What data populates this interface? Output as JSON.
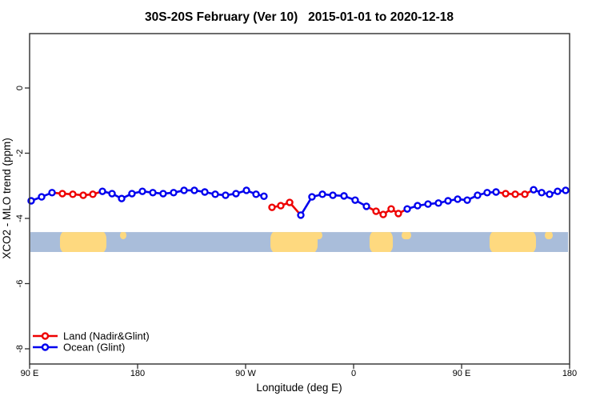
{
  "chart_data": {
    "type": "line",
    "title": "30S-20S February (Ver 10)   2015-01-01 to 2020-12-18",
    "xlabel": "Longitude (deg E)",
    "ylabel": "XCO2 - MLO trend (ppm)",
    "x_tick_labels": [
      "90 E",
      "180",
      "90 W",
      "0",
      "90 E",
      "180"
    ],
    "x_tick_lon_offsets": [
      0,
      90,
      180,
      270,
      360,
      450
    ],
    "x_axis_note": "longitude axis wraps: 90E eastward through 180, 90W, 0, 90E to 180 (450 deg span)",
    "y_ticks": [
      "0",
      "-2",
      "-4",
      "-6",
      "-8"
    ],
    "y_tick_values": [
      0,
      -2,
      -4,
      -6,
      -8
    ],
    "ylim": [
      -8.47,
      1.67
    ],
    "grid": false,
    "legend_position": "bottom-left inside plot",
    "legend": [
      {
        "label": "Land (Nadir&Glint)",
        "color": "#ee0000",
        "series": "L"
      },
      {
        "label": "Ocean (Glint)",
        "color": "#0000ee",
        "series": "O"
      }
    ],
    "colors": {
      "land_series": "#ee0000",
      "ocean_series": "#0000ee",
      "map_ocean": "#a9bdda",
      "map_land": "#fed97f",
      "axis": "#2e2e2e",
      "marker_fill": "#ffffff"
    },
    "map_band": {
      "description": "surface type strip for 30S-20S latitude band",
      "ppm_top": -4.42,
      "ppm_bottom": -5.03,
      "land_patches": [
        {
          "lon_from": 25.3,
          "lon_to": 64.0,
          "full": true
        },
        {
          "lon_from": 75.3,
          "lon_to": 80.7,
          "full": false
        },
        {
          "lon_from": 200.7,
          "lon_to": 240.0,
          "full": true
        },
        {
          "lon_from": 236.0,
          "lon_to": 244.0,
          "full": false
        },
        {
          "lon_from": 283.3,
          "lon_to": 302.7,
          "full": true
        },
        {
          "lon_from": 310.0,
          "lon_to": 318.0,
          "full": false
        },
        {
          "lon_from": 383.3,
          "lon_to": 422.0,
          "full": true
        },
        {
          "lon_from": 429.3,
          "lon_to": 436.0,
          "full": false
        }
      ]
    },
    "points": [
      {
        "lon": 1.3,
        "v": -3.46,
        "c": "O"
      },
      {
        "lon": 10.0,
        "v": -3.34,
        "c": "O"
      },
      {
        "lon": 18.7,
        "v": -3.21,
        "c": "O"
      },
      {
        "lon": 27.3,
        "v": -3.24,
        "c": "L"
      },
      {
        "lon": 36.0,
        "v": -3.26,
        "c": "L"
      },
      {
        "lon": 44.7,
        "v": -3.29,
        "c": "L"
      },
      {
        "lon": 52.7,
        "v": -3.26,
        "c": "L"
      },
      {
        "lon": 60.7,
        "v": -3.17,
        "c": "O"
      },
      {
        "lon": 68.7,
        "v": -3.24,
        "c": "O"
      },
      {
        "lon": 76.7,
        "v": -3.39,
        "c": "O"
      },
      {
        "lon": 85.3,
        "v": -3.24,
        "c": "O"
      },
      {
        "lon": 94.0,
        "v": -3.17,
        "c": "O"
      },
      {
        "lon": 102.7,
        "v": -3.21,
        "c": "O"
      },
      {
        "lon": 111.3,
        "v": -3.24,
        "c": "O"
      },
      {
        "lon": 120.0,
        "v": -3.21,
        "c": "O"
      },
      {
        "lon": 128.7,
        "v": -3.14,
        "c": "O"
      },
      {
        "lon": 137.3,
        "v": -3.14,
        "c": "O"
      },
      {
        "lon": 146.0,
        "v": -3.19,
        "c": "O"
      },
      {
        "lon": 154.7,
        "v": -3.26,
        "c": "O"
      },
      {
        "lon": 163.3,
        "v": -3.29,
        "c": "O"
      },
      {
        "lon": 172.0,
        "v": -3.24,
        "c": "O"
      },
      {
        "lon": 180.7,
        "v": -3.14,
        "c": "O"
      },
      {
        "lon": 188.7,
        "v": -3.26,
        "c": "O"
      },
      {
        "lon": 195.3,
        "v": -3.32,
        "c": "O"
      },
      {
        "lon": 202.0,
        "v": -3.66,
        "c": "L",
        "gap": true
      },
      {
        "lon": 209.3,
        "v": -3.61,
        "c": "L"
      },
      {
        "lon": 216.7,
        "v": -3.51,
        "c": "L"
      },
      {
        "lon": 226.0,
        "v": -3.9,
        "c": "O"
      },
      {
        "lon": 235.3,
        "v": -3.34,
        "c": "O"
      },
      {
        "lon": 244.0,
        "v": -3.26,
        "c": "O"
      },
      {
        "lon": 252.7,
        "v": -3.29,
        "c": "O"
      },
      {
        "lon": 262.0,
        "v": -3.31,
        "c": "O"
      },
      {
        "lon": 271.3,
        "v": -3.44,
        "c": "O"
      },
      {
        "lon": 280.7,
        "v": -3.63,
        "c": "O"
      },
      {
        "lon": 288.7,
        "v": -3.78,
        "c": "L"
      },
      {
        "lon": 294.7,
        "v": -3.88,
        "c": "L"
      },
      {
        "lon": 301.3,
        "v": -3.71,
        "c": "L"
      },
      {
        "lon": 307.3,
        "v": -3.85,
        "c": "L"
      },
      {
        "lon": 314.7,
        "v": -3.71,
        "c": "O"
      },
      {
        "lon": 323.3,
        "v": -3.61,
        "c": "O"
      },
      {
        "lon": 332.0,
        "v": -3.56,
        "c": "O"
      },
      {
        "lon": 340.7,
        "v": -3.53,
        "c": "O"
      },
      {
        "lon": 348.7,
        "v": -3.46,
        "c": "O"
      },
      {
        "lon": 356.7,
        "v": -3.41,
        "c": "O"
      },
      {
        "lon": 364.7,
        "v": -3.44,
        "c": "O"
      },
      {
        "lon": 373.3,
        "v": -3.29,
        "c": "O"
      },
      {
        "lon": 381.3,
        "v": -3.21,
        "c": "O"
      },
      {
        "lon": 388.7,
        "v": -3.19,
        "c": "O"
      },
      {
        "lon": 396.7,
        "v": -3.24,
        "c": "L"
      },
      {
        "lon": 404.7,
        "v": -3.26,
        "c": "L"
      },
      {
        "lon": 412.7,
        "v": -3.26,
        "c": "L"
      },
      {
        "lon": 420.0,
        "v": -3.12,
        "c": "O"
      },
      {
        "lon": 426.7,
        "v": -3.21,
        "c": "O"
      },
      {
        "lon": 433.3,
        "v": -3.26,
        "c": "O"
      },
      {
        "lon": 440.0,
        "v": -3.17,
        "c": "O"
      },
      {
        "lon": 446.7,
        "v": -3.14,
        "c": "O"
      }
    ]
  }
}
